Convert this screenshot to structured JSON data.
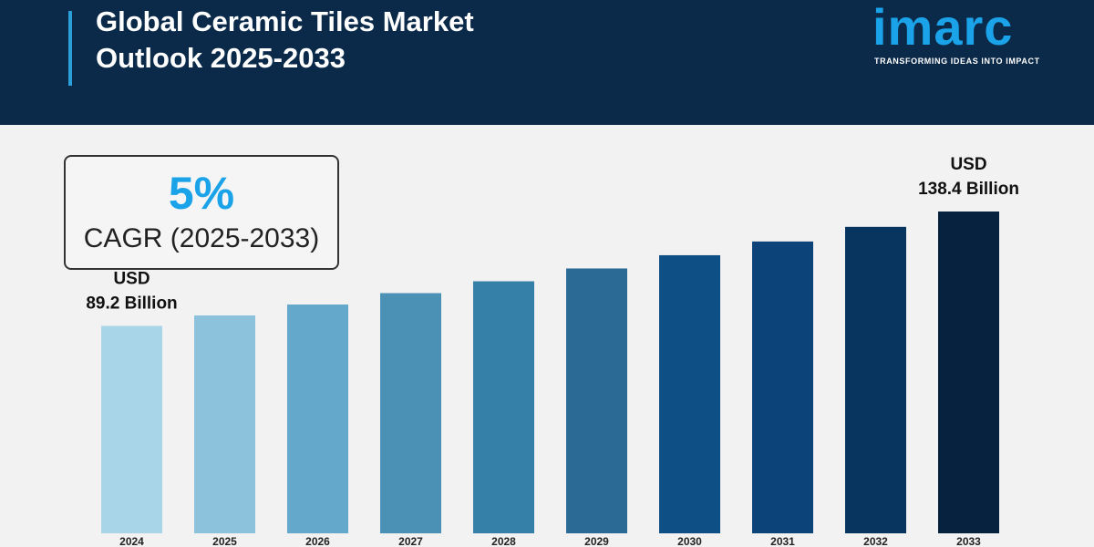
{
  "header": {
    "title_line1": "Global Ceramic Tiles Market",
    "title_line2": "Outlook 2025-2033"
  },
  "logo": {
    "wordmark": "imarc",
    "tagline": "TRANSFORMING IDEAS INTO IMPACT"
  },
  "cagr": {
    "value": "5%",
    "label": "CAGR (2025-2033)"
  },
  "colors": {
    "header_bg": "#0b2a4a",
    "accent": "#1aa3e8",
    "page_bg": "#f2f2f2"
  },
  "chart_data": {
    "type": "bar",
    "categories": [
      "2024",
      "2025",
      "2026",
      "2027",
      "2028",
      "2029",
      "2030",
      "2031",
      "2032",
      "2033"
    ],
    "values": [
      89.2,
      93.7,
      98.4,
      103.3,
      108.4,
      113.9,
      119.6,
      125.5,
      131.8,
      138.4
    ],
    "bar_colors": [
      "#a9d5e8",
      "#8cc2db",
      "#64a9cb",
      "#4b91b6",
      "#3580a8",
      "#2a6a94",
      "#0e4f85",
      "#0c447a",
      "#08355f",
      "#06223f"
    ],
    "annotations": [
      {
        "index": 0,
        "line1": "USD",
        "line2": "89.2 Billion"
      },
      {
        "index": 9,
        "line1": "USD",
        "line2": "138.4 Billion"
      }
    ],
    "ylim": [
      0,
      138.4
    ],
    "grid": false,
    "legend": "none"
  }
}
